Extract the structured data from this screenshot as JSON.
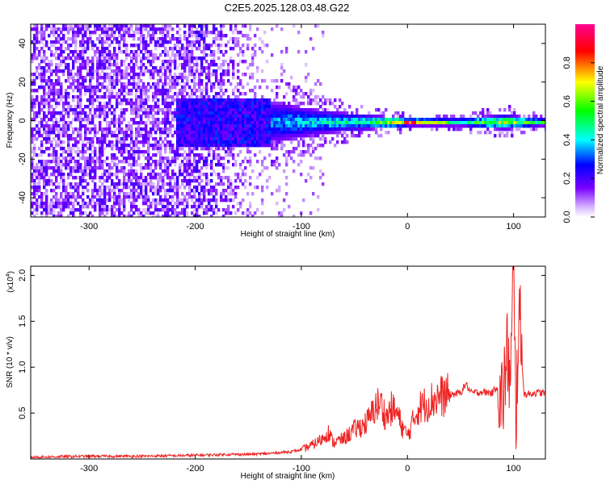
{
  "title": "C2E5.2025.128.03.48.G22",
  "spectrogram": {
    "xlabel": "Height of straight line (km)",
    "ylabel": "Frequency (Hz)",
    "xlim": [
      -355,
      130
    ],
    "ylim": [
      -50,
      50
    ],
    "xticks": [
      -300,
      -200,
      -100,
      0,
      100
    ],
    "xtick_labels": [
      "-300",
      "-200",
      "-100",
      "0",
      "100"
    ],
    "yticks": [
      -40,
      -20,
      0,
      20,
      40
    ],
    "ytick_labels": [
      "-40",
      "-20",
      "0",
      "20",
      "40"
    ],
    "colorbar": {
      "label": "Normalized spectral amplitude",
      "range": [
        0,
        1
      ],
      "ticks": [
        0.0,
        0.2,
        0.4,
        0.6,
        0.8
      ],
      "tick_labels": [
        "0.0",
        "0.2",
        "0.4",
        "0.6",
        "0.8"
      ],
      "colormap": [
        "#ffffff",
        "#7a00ff",
        "#0000ff",
        "#00ffff",
        "#00ff00",
        "#ffff00",
        "#ff0000",
        "#ff0090"
      ]
    }
  },
  "chart_data": [
    {
      "type": "heatmap",
      "title": "C2E5.2025.128.03.48.G22",
      "xlabel": "Height of straight line (km)",
      "ylabel": "Frequency (Hz)",
      "zlabel": "Normalized spectral amplitude",
      "xlim": [
        -355,
        130
      ],
      "ylim": [
        -50,
        50
      ],
      "zlim": [
        0,
        1
      ],
      "description_points": [
        {
          "x": -320,
          "freq_spread": 50,
          "amplitude": 0.15
        },
        {
          "x": -250,
          "freq_spread": 50,
          "amplitude": 0.15
        },
        {
          "x": -180,
          "freq_spread": 12,
          "amplitude": 0.25
        },
        {
          "x": -120,
          "freq_spread": 10,
          "amplitude": 0.3
        },
        {
          "x": -80,
          "freq_spread": 6,
          "amplitude": 0.35
        },
        {
          "x": -40,
          "freq_spread": 4,
          "amplitude": 0.45
        },
        {
          "x": 0,
          "freq_spread": 2,
          "amplitude": 0.9
        },
        {
          "x": 50,
          "freq_spread": 2,
          "amplitude": 0.5
        },
        {
          "x": 90,
          "freq_spread": 4,
          "amplitude": 0.6
        },
        {
          "x": 125,
          "freq_spread": 2,
          "amplitude": 0.5
        }
      ]
    },
    {
      "type": "line",
      "xlabel": "Height of straight line (km)",
      "ylabel": "SNR (10 * v/v)",
      "y_multiplier": "(x10",
      "y_multiplier_exp": "4",
      "y_multiplier_close": ")",
      "xlim": [
        -355,
        130
      ],
      "ylim": [
        0,
        2.1
      ],
      "xticks": [
        -300,
        -200,
        -100,
        0,
        100
      ],
      "xtick_labels": [
        "-300",
        "-200",
        "-100",
        "0",
        "100"
      ],
      "yticks": [
        0.5,
        1.0,
        1.5,
        2.0
      ],
      "ytick_labels": [
        "0.5",
        "1.0",
        "1.5",
        "2.0"
      ],
      "color": "#ee2222",
      "series": [
        {
          "x": [
            -355,
            -300,
            -250,
            -200,
            -170,
            -150,
            -130,
            -110,
            -100,
            -90,
            -80,
            -75,
            -70,
            -60,
            -50,
            -40,
            -35,
            -30,
            -25,
            -20,
            -15,
            -10,
            -5,
            0,
            5,
            10,
            20,
            30,
            40,
            50,
            55,
            60,
            70,
            80,
            85,
            88,
            92,
            95,
            97,
            100,
            102,
            105,
            110,
            120,
            130
          ],
          "y": [
            0.02,
            0.03,
            0.03,
            0.04,
            0.05,
            0.05,
            0.06,
            0.08,
            0.1,
            0.15,
            0.22,
            0.3,
            0.18,
            0.22,
            0.32,
            0.38,
            0.45,
            0.58,
            0.6,
            0.45,
            0.55,
            0.5,
            0.35,
            0.25,
            0.4,
            0.55,
            0.62,
            0.68,
            0.7,
            0.72,
            0.82,
            0.72,
            0.73,
            0.72,
            0.8,
            0.55,
            0.9,
            1.2,
            0.7,
            2.1,
            0.4,
            1.6,
            0.7,
            0.72,
            0.72
          ]
        }
      ]
    }
  ],
  "snr": {
    "ylabel": "SNR (10 * v/v)",
    "xlabel": "Height of straight line (km)"
  }
}
